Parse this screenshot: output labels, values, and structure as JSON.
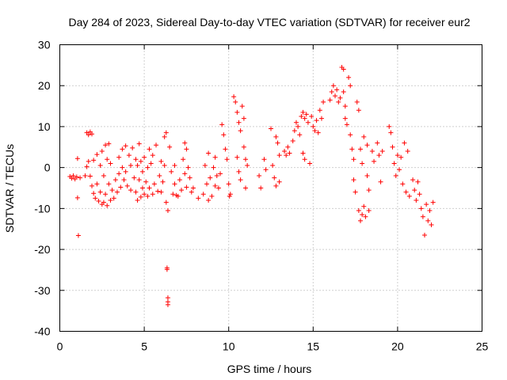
{
  "chart_data": {
    "type": "scatter",
    "title": "Day 284 of 2023, Sidereal Day-to-day VTEC variation (SDTVAR) for receiver eur2",
    "xlabel": "GPS time / hours",
    "ylabel": "SDTVAR / TECUs",
    "xlim": [
      0,
      25
    ],
    "ylim": [
      -40,
      30
    ],
    "xticks": [
      "0",
      "5",
      "10",
      "15",
      "20",
      "25"
    ],
    "yticks": [
      "30",
      "20",
      "10",
      "0",
      "-10",
      "-20",
      "-30",
      "-40"
    ],
    "grid": true,
    "marker": "+",
    "series_color": "#ff0000",
    "series": [
      {
        "name": "SDTVAR",
        "points": [
          [
            0.6,
            -2.2
          ],
          [
            0.7,
            -2.6
          ],
          [
            0.8,
            -2.0
          ],
          [
            0.9,
            -2.8
          ],
          [
            1.0,
            -2.3
          ],
          [
            1.05,
            2.2
          ],
          [
            1.05,
            -7.4
          ],
          [
            1.1,
            -16.6
          ],
          [
            1.2,
            -2.5
          ],
          [
            1.5,
            -2.0
          ],
          [
            1.6,
            8.5
          ],
          [
            1.7,
            8.0
          ],
          [
            1.8,
            8.7
          ],
          [
            1.9,
            8.2
          ],
          [
            1.6,
            0.2
          ],
          [
            1.7,
            1.5
          ],
          [
            1.8,
            -2.1
          ],
          [
            1.9,
            -4.5
          ],
          [
            2.0,
            -6.3
          ],
          [
            2.0,
            1.8
          ],
          [
            2.1,
            -7.5
          ],
          [
            2.2,
            3.2
          ],
          [
            2.2,
            -4.0
          ],
          [
            2.3,
            -8.2
          ],
          [
            2.4,
            0.5
          ],
          [
            2.4,
            -6.0
          ],
          [
            2.5,
            4.0
          ],
          [
            2.5,
            -9.0
          ],
          [
            2.6,
            -2.0
          ],
          [
            2.6,
            -8.5
          ],
          [
            2.7,
            5.5
          ],
          [
            2.7,
            -6.5
          ],
          [
            2.8,
            2.0
          ],
          [
            2.8,
            -9.3
          ],
          [
            2.9,
            5.8
          ],
          [
            2.9,
            -4.0
          ],
          [
            3.0,
            -8.0
          ],
          [
            3.0,
            1.0
          ],
          [
            3.1,
            -5.5
          ],
          [
            3.2,
            -7.5
          ],
          [
            3.3,
            -3.0
          ],
          [
            3.4,
            -6.0
          ],
          [
            3.5,
            -1.5
          ],
          [
            3.5,
            2.5
          ],
          [
            3.6,
            -4.8
          ],
          [
            3.7,
            4.5
          ],
          [
            3.7,
            0.0
          ],
          [
            3.8,
            -3.0
          ],
          [
            3.9,
            5.3
          ],
          [
            3.9,
            -1.0
          ],
          [
            4.0,
            -4.5
          ],
          [
            4.1,
            3.0
          ],
          [
            4.2,
            -5.5
          ],
          [
            4.2,
            0.5
          ],
          [
            4.3,
            4.8
          ],
          [
            4.4,
            -2.5
          ],
          [
            4.5,
            2.0
          ],
          [
            4.5,
            -6.0
          ],
          [
            4.6,
            0.5
          ],
          [
            4.6,
            -8.0
          ],
          [
            4.7,
            5.8
          ],
          [
            4.7,
            -3.0
          ],
          [
            4.8,
            1.5
          ],
          [
            4.8,
            -7.2
          ],
          [
            4.9,
            -1.0
          ],
          [
            4.9,
            -5.0
          ],
          [
            5.0,
            2.5
          ],
          [
            5.0,
            -6.5
          ],
          [
            5.1,
            -3.5
          ],
          [
            5.2,
            -7.0
          ],
          [
            5.2,
            0.0
          ],
          [
            5.3,
            4.5
          ],
          [
            5.3,
            -5.0
          ],
          [
            5.4,
            1.0
          ],
          [
            5.5,
            -6.5
          ],
          [
            5.5,
            3.0
          ],
          [
            5.6,
            -4.0
          ],
          [
            5.7,
            5.5
          ],
          [
            5.8,
            -5.8
          ],
          [
            5.9,
            -2.0
          ],
          [
            6.0,
            -6.0
          ],
          [
            6.0,
            1.5
          ],
          [
            6.1,
            -3.5
          ],
          [
            6.2,
            7.5
          ],
          [
            6.3,
            8.5
          ],
          [
            6.2,
            0.5
          ],
          [
            6.3,
            -8.5
          ],
          [
            6.4,
            -10.5
          ],
          [
            6.35,
            -24.5
          ],
          [
            6.35,
            -24.9
          ],
          [
            6.4,
            -31.8
          ],
          [
            6.4,
            -32.8
          ],
          [
            6.4,
            -33.5
          ],
          [
            6.5,
            5.0
          ],
          [
            6.6,
            -1.0
          ],
          [
            6.7,
            -6.5
          ],
          [
            6.8,
            0.5
          ],
          [
            6.8,
            -4.0
          ],
          [
            6.9,
            -6.8
          ],
          [
            7.0,
            -7.0
          ],
          [
            7.1,
            -3.0
          ],
          [
            7.2,
            -5.5
          ],
          [
            7.3,
            2.0
          ],
          [
            7.4,
            6.0
          ],
          [
            7.4,
            -1.5
          ],
          [
            7.5,
            4.5
          ],
          [
            7.5,
            -4.8
          ],
          [
            7.6,
            0.0
          ],
          [
            7.7,
            -2.5
          ],
          [
            7.8,
            -6.0
          ],
          [
            7.9,
            -5.0
          ],
          [
            8.2,
            -7.5
          ],
          [
            8.5,
            -6.5
          ],
          [
            8.6,
            0.5
          ],
          [
            8.7,
            -4.0
          ],
          [
            8.8,
            3.5
          ],
          [
            8.8,
            -8.0
          ],
          [
            8.9,
            -2.5
          ],
          [
            9.0,
            -7.0
          ],
          [
            9.1,
            0.0
          ],
          [
            9.2,
            -4.5
          ],
          [
            9.2,
            2.5
          ],
          [
            9.3,
            -2.0
          ],
          [
            9.4,
            -5.0
          ],
          [
            9.5,
            -1.5
          ],
          [
            9.6,
            10.5
          ],
          [
            9.7,
            8.0
          ],
          [
            9.8,
            4.5
          ],
          [
            9.9,
            2.0
          ],
          [
            10.0,
            -4.0
          ],
          [
            10.05,
            -7.0
          ],
          [
            10.1,
            -6.5
          ],
          [
            10.3,
            17.3
          ],
          [
            10.4,
            16.0
          ],
          [
            10.5,
            13.5
          ],
          [
            10.6,
            11.0
          ],
          [
            10.7,
            9.0
          ],
          [
            10.5,
            2.5
          ],
          [
            10.6,
            -1.0
          ],
          [
            10.7,
            -3.0
          ],
          [
            10.8,
            15.0
          ],
          [
            10.9,
            12.0
          ],
          [
            10.9,
            5.0
          ],
          [
            11.0,
            2.0
          ],
          [
            11.0,
            -5.0
          ],
          [
            11.1,
            0.5
          ],
          [
            11.8,
            -2.0
          ],
          [
            11.9,
            -5.0
          ],
          [
            12.1,
            2.0
          ],
          [
            12.2,
            -0.5
          ],
          [
            12.5,
            9.5
          ],
          [
            12.6,
            0.5
          ],
          [
            12.7,
            -2.5
          ],
          [
            12.8,
            -4.5
          ],
          [
            12.8,
            7.5
          ],
          [
            12.9,
            6.0
          ],
          [
            13.0,
            3.0
          ],
          [
            13.0,
            -3.5
          ],
          [
            13.3,
            4.0
          ],
          [
            13.4,
            3.0
          ],
          [
            13.5,
            5.0
          ],
          [
            13.6,
            3.5
          ],
          [
            13.8,
            6.5
          ],
          [
            13.9,
            9.0
          ],
          [
            14.0,
            11.0
          ],
          [
            14.1,
            10.0
          ],
          [
            14.2,
            8.0
          ],
          [
            14.3,
            12.5
          ],
          [
            14.4,
            13.5
          ],
          [
            14.5,
            12.0
          ],
          [
            14.4,
            3.5
          ],
          [
            14.5,
            2.0
          ],
          [
            14.6,
            13.0
          ],
          [
            14.7,
            11.0
          ],
          [
            14.8,
            1.0
          ],
          [
            14.9,
            12.5
          ],
          [
            15.0,
            10.0
          ],
          [
            15.1,
            9.0
          ],
          [
            15.2,
            11.5
          ],
          [
            15.3,
            8.5
          ],
          [
            15.4,
            14.0
          ],
          [
            15.5,
            12.0
          ],
          [
            15.6,
            16.0
          ],
          [
            16.0,
            16.5
          ],
          [
            16.1,
            18.5
          ],
          [
            16.2,
            20.0
          ],
          [
            16.3,
            17.5
          ],
          [
            16.4,
            19.0
          ],
          [
            16.5,
            16.0
          ],
          [
            16.6,
            17.0
          ],
          [
            16.7,
            24.5
          ],
          [
            16.8,
            24.0
          ],
          [
            16.8,
            18.5
          ],
          [
            16.9,
            12.0
          ],
          [
            16.9,
            15.0
          ],
          [
            17.0,
            10.5
          ],
          [
            17.1,
            22.0
          ],
          [
            17.2,
            20.0
          ],
          [
            17.2,
            8.0
          ],
          [
            17.3,
            4.5
          ],
          [
            17.4,
            2.0
          ],
          [
            17.4,
            -3.0
          ],
          [
            17.5,
            -6.0
          ],
          [
            17.6,
            16.0
          ],
          [
            17.7,
            14.0
          ],
          [
            17.7,
            -10.5
          ],
          [
            17.8,
            -13.0
          ],
          [
            17.8,
            4.5
          ],
          [
            17.9,
            -11.5
          ],
          [
            17.9,
            1.0
          ],
          [
            18.0,
            7.5
          ],
          [
            18.0,
            -9.5
          ],
          [
            18.1,
            -12.0
          ],
          [
            18.2,
            5.5
          ],
          [
            18.2,
            -2.0
          ],
          [
            18.3,
            -5.5
          ],
          [
            18.3,
            -10.5
          ],
          [
            18.5,
            4.0
          ],
          [
            18.6,
            1.5
          ],
          [
            18.8,
            6.0
          ],
          [
            18.9,
            3.0
          ],
          [
            19.0,
            -3.5
          ],
          [
            19.1,
            4.0
          ],
          [
            19.5,
            10.0
          ],
          [
            19.6,
            8.5
          ],
          [
            19.7,
            5.0
          ],
          [
            19.8,
            1.0
          ],
          [
            19.9,
            -2.0
          ],
          [
            20.0,
            3.0
          ],
          [
            20.1,
            -0.5
          ],
          [
            20.2,
            2.5
          ],
          [
            20.3,
            -4.0
          ],
          [
            20.4,
            6.0
          ],
          [
            20.5,
            -6.0
          ],
          [
            20.6,
            4.0
          ],
          [
            20.7,
            -7.0
          ],
          [
            20.9,
            -3.0
          ],
          [
            21.0,
            -5.5
          ],
          [
            21.1,
            -8.0
          ],
          [
            21.2,
            -3.5
          ],
          [
            21.3,
            -6.5
          ],
          [
            21.4,
            -10.0
          ],
          [
            21.5,
            -12.0
          ],
          [
            21.6,
            -16.5
          ],
          [
            21.7,
            -9.0
          ],
          [
            21.8,
            -13.0
          ],
          [
            21.9,
            -10.5
          ],
          [
            22.0,
            -14.0
          ],
          [
            22.1,
            -8.5
          ]
        ]
      }
    ]
  }
}
